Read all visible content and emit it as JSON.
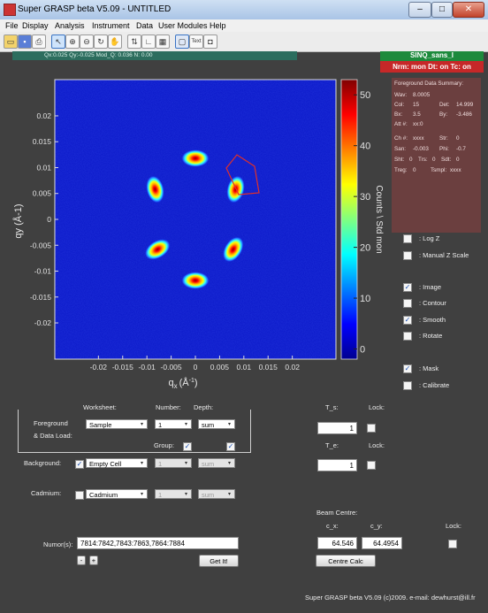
{
  "window": {
    "title": "Super GRASP beta V5.09 - UNTITLED",
    "minimize": "–",
    "maximize": "□",
    "close": "✕"
  },
  "menu": [
    "File",
    "Display",
    "Analysis",
    "Instrument",
    "Data",
    "User Modules",
    "Help"
  ],
  "toolbar": {
    "icons": [
      "new-folder-icon",
      "save-icon",
      "print-icon",
      "select-arrow-icon",
      "zoom-in-icon",
      "zoom-out-icon",
      "rotate-icon",
      "pan-hand-icon",
      "flip-icon",
      "line-cut-icon",
      "grid-icon",
      "window-icon",
      "text-box-icon",
      "stop-icon"
    ],
    "text_label": "Text"
  },
  "coord_readout": "Qx:0.025  Qy:-0.025  Mod_Q: 0.036   N: 0.00",
  "instrument_banner": "SINQ_sans_I",
  "norm_banner": "Nrm: mon  Dt: on  Tc: on",
  "summary": {
    "title": "Foreground Data Summary:",
    "wav_label": "Wav:",
    "wav_value": "8.0005",
    "col_label": "Col:",
    "col_value": "15",
    "det_label": "Det:",
    "det_value": "14.999",
    "bx_label": "Bx:",
    "bx_value": "3.5",
    "by_label": "By:",
    "by_value": "-3.486",
    "att_label": "Att #:",
    "att_value": "xx:0",
    "ch_label": "Ch #:",
    "ch_value": "xxxx",
    "str_label": "Str:",
    "str_value": "0",
    "san_label": "San:",
    "san_value": "-0.003",
    "phi_label": "Phi:",
    "phi_value": "-0.7",
    "sht_label": "Sht:",
    "sht_value": "0",
    "trs_label": "Trs:",
    "trs_value": "0",
    "sdt_label": "Sdt:",
    "sdt_value": "0",
    "treg_label": "Treg:",
    "treg_value": "0",
    "tsmpl_label": "Tsmpl:",
    "tsmpl_value": "xxxx"
  },
  "display_options": [
    {
      "label": ": Log Z",
      "checked": false
    },
    {
      "label": ": Manual Z Scale",
      "checked": false
    },
    {
      "label": ": Image",
      "checked": true
    },
    {
      "label": ": Contour",
      "checked": false
    },
    {
      "label": ": Smooth",
      "checked": true
    },
    {
      "label": ": Rotate",
      "checked": false
    },
    {
      "label": ": Mask",
      "checked": true
    },
    {
      "label": ": Calibrate",
      "checked": false
    }
  ],
  "chart_data": {
    "type": "heatmap",
    "xlabel": "qx (Å-1)",
    "xlabel_main": "q",
    "xlabel_sub": "x",
    "xlabel_unit": "(Å",
    "xlabel_exp": "-1",
    "xlabel_close": ")",
    "ylabel": "qy (Å-1)",
    "xlim": [
      -0.029,
      0.029
    ],
    "ylim": [
      -0.027,
      0.027
    ],
    "x_ticks": [
      -0.02,
      -0.015,
      -0.01,
      -0.005,
      0,
      0.005,
      0.01,
      0.015,
      0.02
    ],
    "x_tick_labels": [
      "-0.02",
      "-0.015",
      "-0.01",
      "-0.005",
      "0",
      "0.005",
      "0.01",
      "0.015",
      "0.02"
    ],
    "y_ticks": [
      0.02,
      0.015,
      0.01,
      0.005,
      0,
      -0.005,
      -0.01,
      -0.015,
      -0.02
    ],
    "y_tick_labels": [
      "0.02",
      "0.015",
      "0.01",
      "0.005",
      "0",
      "-0.005",
      "-0.01",
      "-0.015",
      "-0.02"
    ],
    "colorbar_label": "Counts \\ Std mon",
    "colorbar_ticks": [
      0,
      10,
      20,
      30,
      40,
      50
    ],
    "colorbar_tick_labels": [
      "0",
      "10",
      "20",
      "30",
      "40",
      "50"
    ],
    "colorbar_range": [
      -2,
      53
    ],
    "peaks": [
      {
        "qx": 0.0,
        "qy": 0.0118,
        "intensity": 52
      },
      {
        "qx": 0.0083,
        "qy": 0.0058,
        "intensity": 50
      },
      {
        "qx": 0.0078,
        "qy": -0.0058,
        "intensity": 48
      },
      {
        "qx": 0.0,
        "qy": -0.0118,
        "intensity": 50
      },
      {
        "qx": -0.0078,
        "qy": -0.0058,
        "intensity": 49
      },
      {
        "qx": -0.0083,
        "qy": 0.0058,
        "intensity": 51
      }
    ],
    "background_level": 3,
    "colors": {
      "plot_bg": "#0a17c8",
      "low": "#000090",
      "high": "#8b0000"
    }
  },
  "data_load": {
    "worksheet_header": "Worksheet:",
    "number_header": "Number:",
    "depth_header": "Depth:",
    "group_header": "Group:",
    "foreground_label": "Foreground",
    "data_load_label": "& Data Load:",
    "foreground_worksheet": "Sample",
    "foreground_number": "1",
    "foreground_depth": "sum",
    "background_label": "Background:",
    "background_worksheet": "Empty Cell",
    "background_number": "1",
    "background_depth": "sum",
    "cadmium_label": "Cadmium:",
    "cadmium_worksheet": "Cadmium",
    "cadmium_number": "1",
    "cadmium_depth": "sum",
    "arrow": "▾"
  },
  "transmissions": {
    "ts_label": "T_s:",
    "ts_value": "1",
    "te_label": "T_e:",
    "te_value": "1",
    "lock_label": "Lock:"
  },
  "beam_centre": {
    "title": "Beam Centre:",
    "cx_label": "c_x:",
    "cy_label": "c_y:",
    "cx_value": "64.546",
    "cy_value": "64.4954",
    "lock_label": "Lock:",
    "calc_button": "Centre Calc"
  },
  "numors": {
    "label": "Numor(s):",
    "value": "7814:7842,7843:7863,7864:7884",
    "get_button": "Get It!",
    "minus": "-",
    "plus": "+"
  },
  "footer": "Super GRASP beta V5.09 (c)2009.  e-mail: dewhurst@ill.fr"
}
